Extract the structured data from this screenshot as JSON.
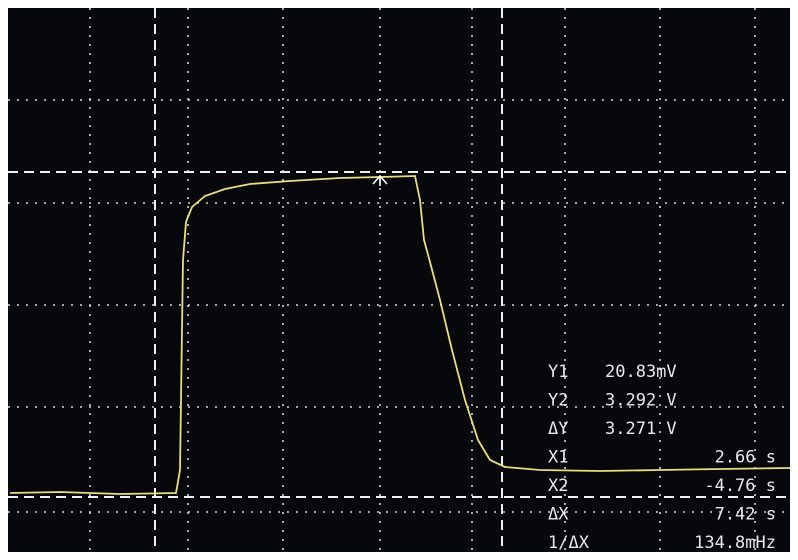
{
  "readouts": [
    {
      "label": "Y1",
      "value": "20.83mV"
    },
    {
      "label": "Y2",
      "value": "3.292 V"
    },
    {
      "label": "ΔY",
      "value": "3.271 V"
    },
    {
      "label": "X1",
      "value": "2.66 s"
    },
    {
      "label": "X2",
      "value": "-4.76 s"
    },
    {
      "label": "ΔX",
      "value": "7.42 s"
    },
    {
      "label": "1/ΔX",
      "value": "134.8mHz"
    }
  ]
}
